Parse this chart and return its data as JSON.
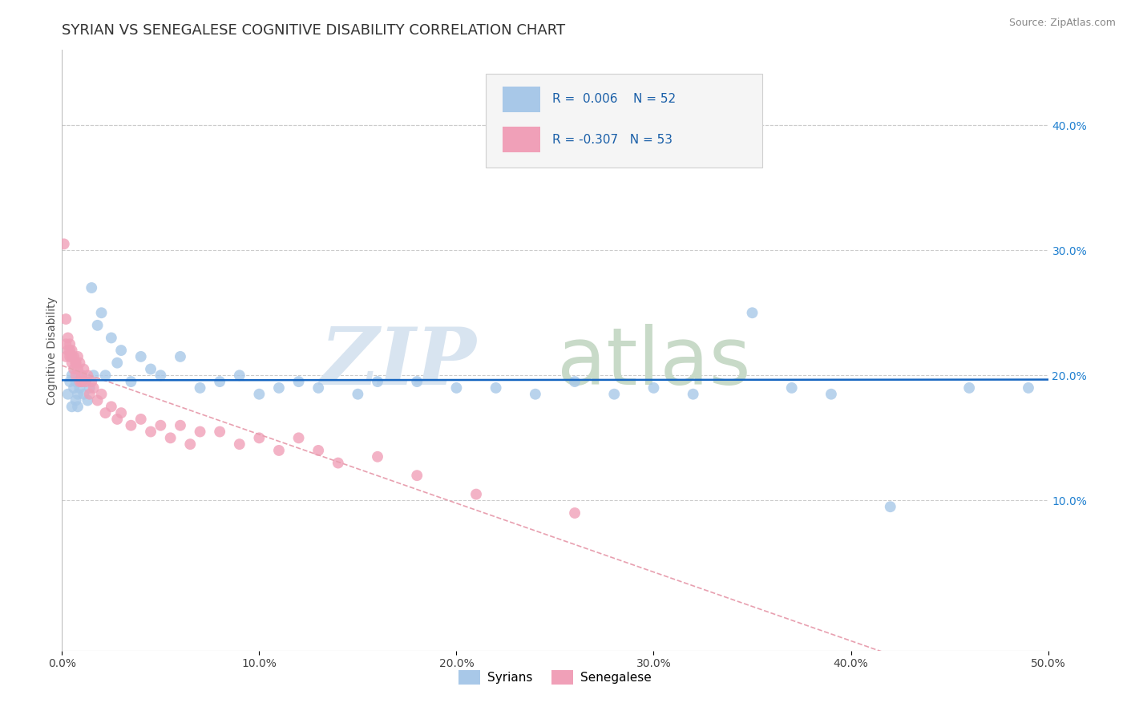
{
  "title": "SYRIAN VS SENEGALESE COGNITIVE DISABILITY CORRELATION CHART",
  "source": "Source: ZipAtlas.com",
  "ylabel": "Cognitive Disability",
  "xlim": [
    0.0,
    0.5
  ],
  "ylim": [
    -0.02,
    0.46
  ],
  "plot_ylim": [
    -0.02,
    0.46
  ],
  "xticks": [
    0.0,
    0.1,
    0.2,
    0.3,
    0.4,
    0.5
  ],
  "xtick_labels": [
    "0.0%",
    "10.0%",
    "20.0%",
    "30.0%",
    "40.0%",
    "50.0%"
  ],
  "yticks_right": [
    0.1,
    0.2,
    0.3,
    0.4
  ],
  "ytick_labels_right": [
    "10.0%",
    "20.0%",
    "30.0%",
    "40.0%"
  ],
  "legend_r_syrian": "0.006",
  "legend_n_syrian": "52",
  "legend_r_senegalese": "-0.307",
  "legend_n_senegalese": "53",
  "syrian_color": "#a8c8e8",
  "senegalese_color": "#f0a0b8",
  "syrian_line_color": "#1565c0",
  "senegalese_line_color": "#e8a0b0",
  "background_color": "#ffffff",
  "grid_color": "#cccccc",
  "syrians_x": [
    0.003,
    0.004,
    0.005,
    0.005,
    0.006,
    0.007,
    0.007,
    0.008,
    0.008,
    0.009,
    0.01,
    0.01,
    0.011,
    0.012,
    0.013,
    0.014,
    0.015,
    0.016,
    0.018,
    0.02,
    0.022,
    0.025,
    0.028,
    0.03,
    0.035,
    0.04,
    0.045,
    0.05,
    0.06,
    0.07,
    0.08,
    0.09,
    0.1,
    0.11,
    0.12,
    0.13,
    0.15,
    0.16,
    0.18,
    0.2,
    0.22,
    0.24,
    0.26,
    0.28,
    0.3,
    0.32,
    0.35,
    0.37,
    0.39,
    0.42,
    0.46,
    0.49
  ],
  "syrians_y": [
    0.185,
    0.195,
    0.175,
    0.2,
    0.19,
    0.18,
    0.195,
    0.185,
    0.175,
    0.19,
    0.195,
    0.2,
    0.185,
    0.195,
    0.18,
    0.19,
    0.27,
    0.2,
    0.24,
    0.25,
    0.2,
    0.23,
    0.21,
    0.22,
    0.195,
    0.215,
    0.205,
    0.2,
    0.215,
    0.19,
    0.195,
    0.2,
    0.185,
    0.19,
    0.195,
    0.19,
    0.185,
    0.195,
    0.195,
    0.19,
    0.19,
    0.185,
    0.195,
    0.185,
    0.19,
    0.185,
    0.25,
    0.19,
    0.185,
    0.095,
    0.19,
    0.19
  ],
  "senegalese_x": [
    0.002,
    0.002,
    0.002,
    0.003,
    0.003,
    0.004,
    0.004,
    0.004,
    0.005,
    0.005,
    0.005,
    0.006,
    0.006,
    0.007,
    0.007,
    0.007,
    0.008,
    0.008,
    0.009,
    0.009,
    0.01,
    0.01,
    0.011,
    0.012,
    0.013,
    0.014,
    0.015,
    0.016,
    0.018,
    0.02,
    0.022,
    0.025,
    0.028,
    0.03,
    0.035,
    0.04,
    0.045,
    0.05,
    0.055,
    0.06,
    0.065,
    0.07,
    0.08,
    0.09,
    0.1,
    0.11,
    0.12,
    0.13,
    0.14,
    0.16,
    0.18,
    0.21,
    0.26
  ],
  "senegalese_y": [
    0.245,
    0.225,
    0.215,
    0.23,
    0.22,
    0.215,
    0.22,
    0.225,
    0.215,
    0.21,
    0.22,
    0.205,
    0.215,
    0.21,
    0.2,
    0.21,
    0.215,
    0.205,
    0.195,
    0.21,
    0.2,
    0.195,
    0.205,
    0.195,
    0.2,
    0.185,
    0.195,
    0.19,
    0.18,
    0.185,
    0.17,
    0.175,
    0.165,
    0.17,
    0.16,
    0.165,
    0.155,
    0.16,
    0.15,
    0.16,
    0.145,
    0.155,
    0.155,
    0.145,
    0.15,
    0.14,
    0.15,
    0.14,
    0.13,
    0.135,
    0.12,
    0.105,
    0.09
  ],
  "senegalese_outlier_x": [
    0.001
  ],
  "senegalese_outlier_y": [
    0.305
  ],
  "title_fontsize": 13,
  "axis_label_fontsize": 10,
  "tick_fontsize": 10,
  "legend_fontsize": 12,
  "marker_size": 100,
  "watermark_zip_color": "#d8e4f0",
  "watermark_atlas_color": "#c8dac8"
}
